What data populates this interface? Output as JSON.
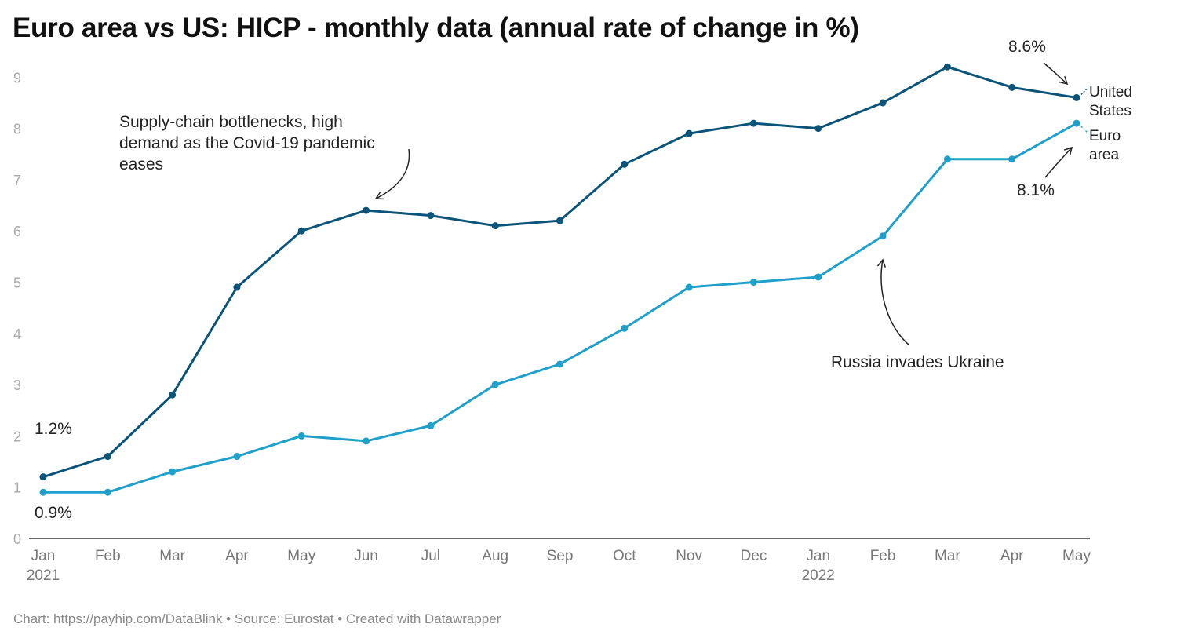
{
  "title": "Euro area vs US: HICP - monthly data (annual rate of change in %)",
  "footer": "Chart: https://payhip.com/DataBlink • Source: Eurostat • Created with Datawrapper",
  "chart_data": {
    "type": "line",
    "title": "Euro area vs US: HICP - monthly data (annual rate of change in %)",
    "categories": [
      "Jan 2021",
      "Feb 2021",
      "Mar 2021",
      "Apr 2021",
      "May 2021",
      "Jun 2021",
      "Jul 2021",
      "Aug 2021",
      "Sep 2021",
      "Oct 2021",
      "Nov 2021",
      "Dec 2021",
      "Jan 2022",
      "Feb 2022",
      "Mar 2022",
      "Apr 2022",
      "May 2022"
    ],
    "x_tick_labels": [
      [
        "Jan",
        "2021"
      ],
      [
        "Feb"
      ],
      [
        "Mar"
      ],
      [
        "Apr"
      ],
      [
        "May"
      ],
      [
        "Jun"
      ],
      [
        "Jul"
      ],
      [
        "Aug"
      ],
      [
        "Sep"
      ],
      [
        "Oct"
      ],
      [
        "Nov"
      ],
      [
        "Dec"
      ],
      [
        "Jan",
        "2022"
      ],
      [
        "Feb"
      ],
      [
        "Mar"
      ],
      [
        "Apr"
      ],
      [
        "May"
      ]
    ],
    "y_ticks": [
      0,
      1,
      2,
      3,
      4,
      5,
      6,
      7,
      8,
      9
    ],
    "ylim": [
      0,
      9.2
    ],
    "grid": false,
    "series": [
      {
        "name": "United States",
        "label_lines": [
          "United",
          "States"
        ],
        "color": "#0b5479",
        "values": [
          1.2,
          1.6,
          2.8,
          4.9,
          6.0,
          6.4,
          6.3,
          6.1,
          6.2,
          7.3,
          7.9,
          8.1,
          8.0,
          8.5,
          9.2,
          8.8,
          8.6
        ]
      },
      {
        "name": "Euro area",
        "label_lines": [
          "Euro",
          "area"
        ],
        "color": "#1ea0cb",
        "values": [
          0.9,
          0.9,
          1.3,
          1.6,
          2.0,
          1.9,
          2.2,
          3.0,
          3.4,
          4.1,
          4.9,
          5.0,
          5.1,
          5.9,
          7.4,
          7.4,
          8.1
        ]
      }
    ],
    "value_labels": [
      {
        "text": "1.2%",
        "series": 0,
        "index": 0
      },
      {
        "text": "0.9%",
        "series": 1,
        "index": 0
      },
      {
        "text": "8.6%",
        "series": 0,
        "index": 16
      },
      {
        "text": "8.1%",
        "series": 1,
        "index": 16
      }
    ],
    "annotations": [
      {
        "lines": [
          "Supply-chain bottlenecks, high",
          "demand as the Covid-19 pandemic",
          "eases"
        ],
        "series": 0,
        "index": 5
      },
      {
        "lines": [
          "Russia invades Ukraine"
        ],
        "series": 1,
        "index": 13
      }
    ]
  }
}
